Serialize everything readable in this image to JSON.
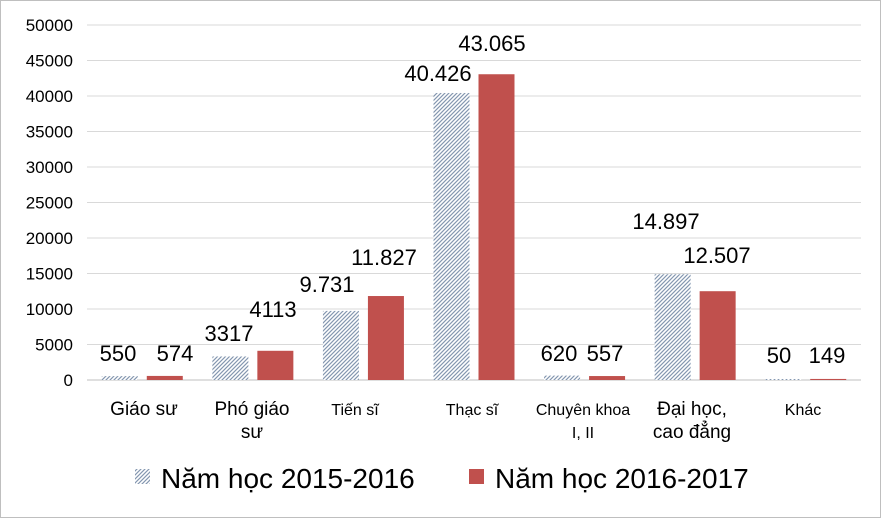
{
  "chart_data": {
    "type": "bar",
    "categories": [
      [
        "Giáo sư"
      ],
      [
        "Phó giáo",
        "sư"
      ],
      [
        "Tiến sĩ"
      ],
      [
        "Thạc sĩ"
      ],
      [
        "Chuyên khoa",
        "I, II"
      ],
      [
        "Đại học,",
        "cao đẳng"
      ],
      [
        "Khác"
      ]
    ],
    "series": [
      {
        "name": "Năm học 2015-2016",
        "values": [
          550,
          3317,
          9731,
          40426,
          620,
          14897,
          50
        ],
        "labels": [
          "550",
          "3317",
          "9.731",
          "40.426",
          "620",
          "14.897",
          "50"
        ],
        "color": "#8497b0",
        "pattern": "diagonal-hatch"
      },
      {
        "name": "Năm học 2016-2017",
        "values": [
          574,
          4113,
          11827,
          43065,
          557,
          12507,
          149
        ],
        "labels": [
          "574",
          "4113",
          "11.827",
          "43.065",
          "557",
          "12.507",
          "149"
        ],
        "color": "#c0504d",
        "pattern": "solid"
      }
    ],
    "yticks": [
      0,
      5000,
      10000,
      15000,
      20000,
      25000,
      30000,
      35000,
      40000,
      45000,
      50000
    ],
    "ylim": [
      0,
      50000
    ],
    "grid": true,
    "legend": "bottom"
  }
}
